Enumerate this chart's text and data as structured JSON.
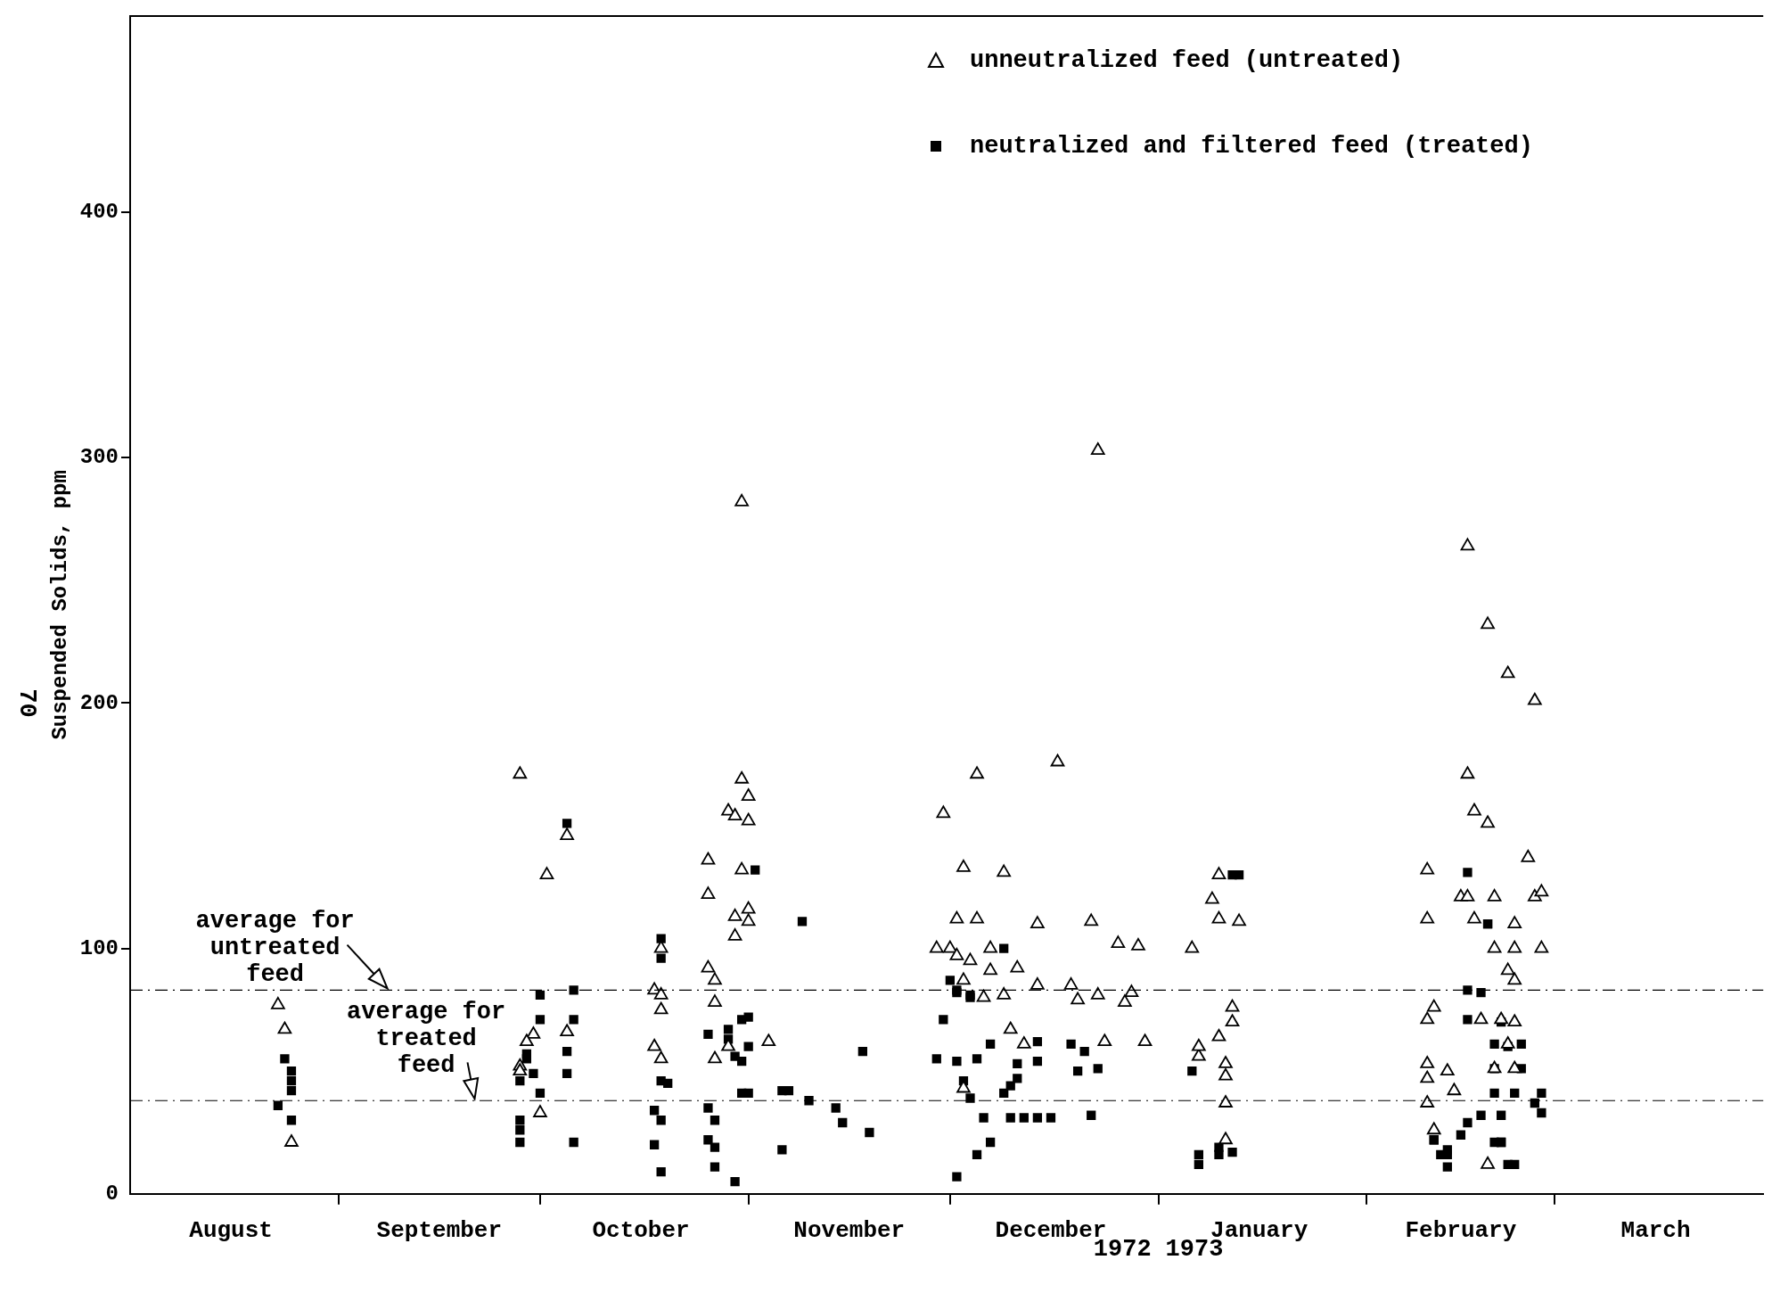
{
  "chart_data": {
    "type": "scatter",
    "ylabel": "Suspended Solids, ppm",
    "xlim": [
      "1972-08-01",
      "1973-04-01"
    ],
    "ylim": [
      0,
      480
    ],
    "xticks": [
      {
        "value": "1972-08-16",
        "label": "August"
      },
      {
        "value": "1972-09-01",
        "label": null
      },
      {
        "value": "1972-09-16",
        "label": "September"
      },
      {
        "value": "1972-10-01",
        "label": null
      },
      {
        "value": "1972-10-16",
        "label": "October"
      },
      {
        "value": "1972-11-01",
        "label": null
      },
      {
        "value": "1972-11-16",
        "label": "November"
      },
      {
        "value": "1972-12-01",
        "label": null
      },
      {
        "value": "1972-12-16",
        "label": "December"
      },
      {
        "value": "1973-01-01",
        "label": null
      },
      {
        "value": "1973-01-16",
        "label": "January"
      },
      {
        "value": "1973-02-01",
        "label": null
      },
      {
        "value": "1973-02-15",
        "label": "February"
      },
      {
        "value": "1973-03-01",
        "label": null
      },
      {
        "value": "1973-03-16",
        "label": "March"
      }
    ],
    "yticks": [
      0,
      100,
      200,
      300,
      400
    ],
    "grid": false,
    "legend": "top right",
    "annotations": [
      "70",
      "1972",
      "1973"
    ],
    "ref_lines": [
      {
        "axis": "y",
        "value": 83,
        "label": "average for untreated feed",
        "line_style": "dashed",
        "color": "#000000"
      },
      {
        "axis": "y",
        "value": 38,
        "label": "average for treated feed",
        "line_style": "dashed",
        "color": "#000000"
      }
    ],
    "series": [
      {
        "name": "unneutralized feed (untreated)",
        "color": "#000000",
        "marker": "triangle",
        "x": [
          "1972-08-23",
          "1972-08-24",
          "1972-08-25",
          "1972-09-28",
          "1972-10-02",
          "1972-10-05",
          "1972-09-30",
          "1972-09-29",
          "1972-09-28",
          "1972-09-28",
          "1972-10-01",
          "1972-10-05",
          "1972-10-19",
          "1972-10-18",
          "1972-10-19",
          "1972-10-19",
          "1972-10-18",
          "1972-10-19",
          "1972-10-26",
          "1972-10-26",
          "1972-10-26",
          "1972-10-27",
          "1972-10-27",
          "1972-10-27",
          "1972-10-31",
          "1972-10-31",
          "1972-11-01",
          "1972-10-29",
          "1972-10-30",
          "1972-11-01",
          "1972-10-31",
          "1972-11-01",
          "1972-10-30",
          "1972-11-01",
          "1972-10-30",
          "1972-10-29",
          "1972-11-04",
          "1972-11-30",
          "1972-11-29",
          "1972-12-01",
          "1972-12-02",
          "1972-12-03",
          "1972-12-02",
          "1972-12-05",
          "1972-12-05",
          "1972-12-04",
          "1972-12-03",
          "1972-12-03",
          "1972-12-07",
          "1972-12-07",
          "1972-12-06",
          "1972-12-09",
          "1972-12-09",
          "1972-12-11",
          "1972-12-10",
          "1972-12-12",
          "1972-12-14",
          "1972-12-14",
          "1972-12-17",
          "1972-12-19",
          "1972-12-20",
          "1972-12-22",
          "1972-12-23",
          "1972-12-23",
          "1972-12-24",
          "1972-12-26",
          "1972-12-27",
          "1972-12-28",
          "1972-12-29",
          "1972-12-30",
          "1973-01-06",
          "1973-01-07",
          "1973-01-07",
          "1973-01-09",
          "1973-01-10",
          "1973-01-10",
          "1973-01-10",
          "1973-01-12",
          "1973-01-12",
          "1973-01-11",
          "1973-01-11",
          "1973-01-11",
          "1973-01-11",
          "1973-01-13",
          "1973-02-10",
          "1973-02-10",
          "1973-02-10",
          "1973-02-11",
          "1973-02-10",
          "1973-02-10",
          "1973-02-10",
          "1973-02-11",
          "1973-02-13",
          "1973-02-14",
          "1973-02-16",
          "1973-02-16",
          "1973-02-15",
          "1973-02-16",
          "1973-02-17",
          "1973-02-17",
          "1973-02-18",
          "1973-02-19",
          "1973-02-19",
          "1973-02-19",
          "1973-02-20",
          "1973-02-20",
          "1973-02-20",
          "1973-02-21",
          "1973-02-22",
          "1973-02-22",
          "1973-02-23",
          "1973-02-23",
          "1973-02-23",
          "1973-02-23",
          "1973-02-22",
          "1973-02-23",
          "1973-02-25",
          "1973-02-26",
          "1973-02-27",
          "1973-02-26",
          "1973-02-27"
        ],
        "values": [
          77,
          67,
          21,
          171,
          130,
          146,
          65,
          62,
          52,
          50,
          33,
          66,
          100,
          83,
          81,
          75,
          60,
          55,
          136,
          122,
          92,
          87,
          78,
          55,
          282,
          169,
          162,
          156,
          154,
          152,
          132,
          116,
          113,
          111,
          105,
          60,
          62,
          155,
          100,
          100,
          97,
          133,
          112,
          171,
          112,
          95,
          87,
          43,
          100,
          91,
          80,
          131,
          81,
          92,
          67,
          61,
          85,
          110,
          176,
          85,
          79,
          111,
          81,
          303,
          62,
          102,
          78,
          82,
          101,
          62,
          100,
          56,
          60,
          120,
          64,
          130,
          112,
          76,
          70,
          53,
          48,
          37,
          22,
          111,
          132,
          112,
          71,
          76,
          53,
          47,
          37,
          26,
          50,
          42,
          171,
          264,
          121,
          121,
          156,
          112,
          71,
          151,
          12,
          232,
          121,
          100,
          51,
          71,
          212,
          91,
          87,
          70,
          110,
          100,
          61,
          51,
          137,
          201,
          100,
          121,
          123
        ]
      },
      {
        "name": "neutralized and filtered feed (treated)",
        "color": "#000000",
        "marker": "square",
        "x": [
          "1972-08-23",
          "1972-08-24",
          "1972-08-25",
          "1972-08-25",
          "1972-08-25",
          "1972-08-25",
          "1972-09-28",
          "1972-09-28",
          "1972-09-28",
          "1972-09-28",
          "1972-09-29",
          "1972-09-29",
          "1972-09-30",
          "1972-10-01",
          "1972-10-01",
          "1972-10-01",
          "1972-10-05",
          "1972-10-06",
          "1972-10-06",
          "1972-10-05",
          "1972-10-05",
          "1972-10-06",
          "1972-10-19",
          "1972-10-19",
          "1972-10-19",
          "1972-10-20",
          "1972-10-18",
          "1972-10-19",
          "1972-10-18",
          "1972-10-19",
          "1972-10-26",
          "1972-10-29",
          "1972-10-29",
          "1972-10-31",
          "1972-11-01",
          "1972-11-02",
          "1972-11-01",
          "1972-10-30",
          "1972-10-31",
          "1972-10-31",
          "1972-11-01",
          "1972-10-26",
          "1972-10-27",
          "1972-10-26",
          "1972-10-27",
          "1972-10-27",
          "1972-10-30",
          "1972-11-06",
          "1972-11-07",
          "1972-11-06",
          "1972-11-09",
          "1972-11-10",
          "1972-11-14",
          "1972-11-15",
          "1972-11-18",
          "1972-11-19",
          "1972-11-29",
          "1972-11-30",
          "1972-12-01",
          "1972-12-02",
          "1972-12-02",
          "1972-12-02",
          "1972-12-03",
          "1972-12-04",
          "1972-12-04",
          "1972-12-04",
          "1972-12-02",
          "1972-12-05",
          "1972-12-05",
          "1972-12-06",
          "1972-12-07",
          "1972-12-07",
          "1972-12-09",
          "1972-12-09",
          "1972-12-10",
          "1972-12-10",
          "1972-12-11",
          "1972-12-11",
          "1972-12-12",
          "1972-12-14",
          "1972-12-14",
          "1972-12-14",
          "1972-12-16",
          "1972-12-19",
          "1972-12-20",
          "1972-12-21",
          "1972-12-22",
          "1972-12-23",
          "1973-01-06",
          "1973-01-07",
          "1973-01-07",
          "1973-01-10",
          "1973-01-10",
          "1973-01-12",
          "1973-01-12",
          "1973-01-13",
          "1973-02-11",
          "1973-02-11",
          "1973-02-12",
          "1973-02-13",
          "1973-02-13",
          "1973-02-13",
          "1973-02-15",
          "1973-02-16",
          "1973-02-16",
          "1973-02-16",
          "1973-02-16",
          "1973-02-18",
          "1973-02-18",
          "1973-02-19",
          "1973-02-19",
          "1973-02-20",
          "1973-02-20",
          "1973-02-20",
          "1973-02-20",
          "1973-02-21",
          "1973-02-21",
          "1973-02-21",
          "1973-02-21",
          "1973-02-22",
          "1973-02-22",
          "1973-02-23",
          "1973-02-23",
          "1973-02-24",
          "1973-02-24",
          "1973-02-26",
          "1973-02-27",
          "1973-02-27"
        ],
        "values": [
          36,
          55,
          50,
          46,
          42,
          30,
          21,
          26,
          30,
          46,
          55,
          57,
          49,
          41,
          81,
          71,
          151,
          83,
          71,
          58,
          49,
          21,
          104,
          96,
          46,
          45,
          34,
          30,
          20,
          9,
          65,
          67,
          63,
          71,
          72,
          132,
          60,
          56,
          54,
          41,
          41,
          35,
          30,
          22,
          19,
          11,
          5,
          42,
          42,
          18,
          111,
          38,
          35,
          29,
          58,
          25,
          55,
          71,
          87,
          83,
          82,
          54,
          46,
          39,
          81,
          80,
          7,
          55,
          16,
          31,
          21,
          61,
          100,
          41,
          44,
          31,
          47,
          53,
          31,
          54,
          62,
          31,
          31,
          61,
          50,
          58,
          32,
          51,
          50,
          12,
          16,
          16,
          19,
          17,
          130,
          130,
          22,
          22,
          16,
          16,
          18,
          11,
          24,
          29,
          131,
          83,
          71,
          82,
          32,
          110,
          110,
          61,
          51,
          41,
          21,
          21,
          21,
          70,
          32,
          60,
          12,
          12,
          41,
          61,
          51,
          37,
          33,
          41
        ]
      }
    ]
  }
}
